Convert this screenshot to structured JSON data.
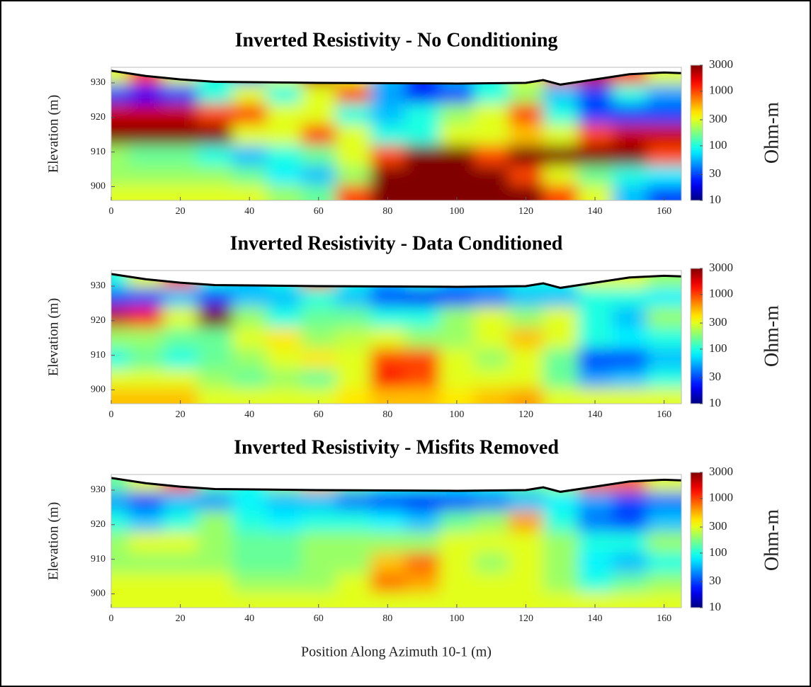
{
  "chart_data": [
    {
      "type": "heatmap",
      "title": "Inverted Resistivity - No Conditioning",
      "ylabel": "Elevation (m)",
      "xlim": [
        0,
        165
      ],
      "ylim": [
        896,
        934.5
      ],
      "xticks": [
        0,
        20,
        40,
        60,
        80,
        100,
        120,
        140,
        160
      ],
      "yticks": [
        900,
        910,
        920,
        930
      ],
      "x": [
        0,
        10,
        20,
        30,
        40,
        50,
        60,
        70,
        80,
        90,
        100,
        110,
        120,
        130,
        140,
        150,
        160
      ],
      "y": [
        932,
        927,
        921,
        915,
        909,
        903,
        898
      ],
      "values": [
        [
          300,
          1000,
          300,
          100,
          50,
          300,
          2000,
          300,
          60,
          30,
          60,
          100,
          300,
          1000,
          2000,
          1000,
          300
        ],
        [
          30,
          20,
          30,
          100,
          300,
          100,
          300,
          1000,
          50,
          20,
          30,
          100,
          200,
          60,
          30,
          100,
          50
        ],
        [
          2000,
          2000,
          2000,
          1000,
          1000,
          300,
          300,
          100,
          60,
          100,
          200,
          300,
          1000,
          100,
          30,
          30,
          30
        ],
        [
          3000,
          3000,
          3000,
          3000,
          300,
          300,
          1000,
          300,
          100,
          100,
          300,
          300,
          500,
          300,
          1000,
          2000,
          2000
        ],
        [
          200,
          150,
          150,
          100,
          60,
          100,
          150,
          300,
          1000,
          3000,
          3000,
          1000,
          3000,
          3000,
          3000,
          3000,
          1000
        ],
        [
          200,
          200,
          200,
          200,
          150,
          80,
          60,
          200,
          3000,
          3000,
          3000,
          3000,
          1000,
          300,
          150,
          100,
          80
        ],
        [
          300,
          300,
          300,
          300,
          300,
          200,
          150,
          1000,
          3000,
          3000,
          3000,
          3000,
          3000,
          1000,
          300,
          60,
          30
        ]
      ],
      "surface": {
        "color": "#000000",
        "x": [
          0,
          10,
          20,
          30,
          60,
          100,
          120,
          125,
          130,
          140,
          150,
          160,
          165
        ],
        "y": [
          933.5,
          932,
          931,
          930.3,
          930,
          929.8,
          930,
          930.8,
          929.5,
          931,
          932.5,
          933,
          932.8
        ]
      },
      "colorbar": {
        "label": "Ohm-m",
        "scale": "log",
        "colormap": "jet",
        "lim": [
          10,
          3000
        ],
        "ticks": [
          10,
          30,
          100,
          300,
          1000,
          3000
        ]
      }
    },
    {
      "type": "heatmap",
      "title": "Inverted Resistivity - Data Conditioned",
      "ylabel": "Elevation (m)",
      "xlim": [
        0,
        165
      ],
      "ylim": [
        896,
        934.5
      ],
      "xticks": [
        0,
        20,
        40,
        60,
        80,
        100,
        120,
        140,
        160
      ],
      "yticks": [
        900,
        910,
        920,
        930
      ],
      "x": [
        0,
        10,
        20,
        30,
        40,
        50,
        60,
        70,
        80,
        90,
        100,
        110,
        120,
        130,
        140,
        150,
        160
      ],
      "y": [
        932,
        927,
        921,
        915,
        909,
        903,
        898
      ],
      "values": [
        [
          100,
          300,
          1000,
          100,
          60,
          100,
          1000,
          100,
          60,
          100,
          60,
          60,
          100,
          100,
          300,
          300,
          200
        ],
        [
          30,
          30,
          60,
          30,
          60,
          60,
          100,
          60,
          30,
          20,
          30,
          40,
          60,
          60,
          100,
          100,
          80
        ],
        [
          2000,
          1500,
          300,
          3000,
          200,
          100,
          150,
          150,
          100,
          100,
          200,
          300,
          200,
          300,
          100,
          60,
          200
        ],
        [
          200,
          200,
          150,
          150,
          300,
          400,
          200,
          250,
          300,
          200,
          200,
          300,
          500,
          300,
          100,
          80,
          100
        ],
        [
          100,
          150,
          100,
          150,
          200,
          300,
          400,
          300,
          1000,
          1000,
          300,
          200,
          300,
          150,
          30,
          30,
          60
        ],
        [
          300,
          300,
          300,
          200,
          150,
          200,
          150,
          300,
          1500,
          1000,
          300,
          300,
          300,
          150,
          50,
          60,
          100
        ],
        [
          500,
          500,
          500,
          300,
          300,
          300,
          300,
          400,
          500,
          500,
          400,
          500,
          600,
          300,
          300,
          300,
          300
        ]
      ],
      "surface": {
        "color": "#000000",
        "x": [
          0,
          10,
          20,
          30,
          60,
          100,
          120,
          125,
          130,
          140,
          150,
          160,
          165
        ],
        "y": [
          933.5,
          932,
          931,
          930.3,
          930,
          929.8,
          930,
          930.8,
          929.5,
          931,
          932.5,
          933,
          932.8
        ]
      },
      "colorbar": {
        "label": "Ohm-m",
        "scale": "log",
        "colormap": "jet",
        "lim": [
          10,
          3000
        ],
        "ticks": [
          10,
          30,
          100,
          300,
          1000,
          3000
        ]
      }
    },
    {
      "type": "heatmap",
      "title": "Inverted Resistivity - Misfits Removed",
      "ylabel": "Elevation (m)",
      "xlabel": "Position Along Azimuth 10-1 (m)",
      "xlim": [
        0,
        165
      ],
      "ylim": [
        896,
        934.5
      ],
      "xticks": [
        0,
        20,
        40,
        60,
        80,
        100,
        120,
        140,
        160
      ],
      "yticks": [
        900,
        910,
        920,
        930
      ],
      "x": [
        0,
        10,
        20,
        30,
        40,
        50,
        60,
        70,
        80,
        90,
        100,
        110,
        120,
        130,
        140,
        150,
        160
      ],
      "y": [
        932,
        927,
        921,
        915,
        909,
        903,
        898
      ],
      "values": [
        [
          150,
          300,
          1000,
          150,
          100,
          200,
          500,
          150,
          100,
          100,
          80,
          100,
          150,
          200,
          800,
          800,
          300
        ],
        [
          50,
          30,
          60,
          50,
          80,
          60,
          60,
          40,
          30,
          20,
          30,
          40,
          60,
          80,
          50,
          30,
          40
        ],
        [
          100,
          60,
          100,
          200,
          100,
          80,
          100,
          100,
          80,
          60,
          150,
          200,
          600,
          100,
          40,
          30,
          60
        ],
        [
          200,
          300,
          300,
          200,
          150,
          150,
          200,
          200,
          200,
          200,
          300,
          300,
          300,
          200,
          100,
          100,
          200
        ],
        [
          200,
          200,
          200,
          200,
          150,
          150,
          200,
          200,
          500,
          800,
          300,
          200,
          300,
          200,
          80,
          60,
          100
        ],
        [
          300,
          300,
          300,
          300,
          200,
          200,
          200,
          300,
          800,
          600,
          300,
          300,
          300,
          200,
          100,
          150,
          200
        ],
        [
          300,
          300,
          300,
          300,
          300,
          300,
          300,
          300,
          300,
          300,
          300,
          300,
          300,
          300,
          300,
          300,
          300
        ]
      ],
      "surface": {
        "color": "#000000",
        "x": [
          0,
          10,
          20,
          30,
          60,
          100,
          120,
          125,
          130,
          140,
          150,
          160,
          165
        ],
        "y": [
          933.5,
          932,
          931,
          930.3,
          930,
          929.8,
          930,
          930.8,
          929.5,
          931,
          932.5,
          933,
          932.8
        ]
      },
      "colorbar": {
        "label": "Ohm-m",
        "scale": "log",
        "colormap": "jet",
        "lim": [
          10,
          3000
        ],
        "ticks": [
          10,
          30,
          100,
          300,
          1000,
          3000
        ]
      }
    }
  ]
}
